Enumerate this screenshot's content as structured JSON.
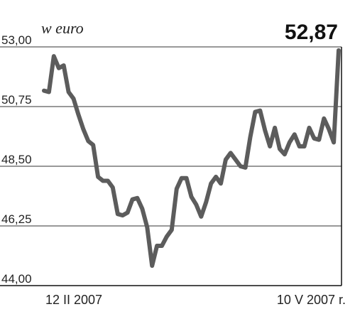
{
  "chart_data": {
    "type": "line",
    "title": "",
    "unit_label": "w euro",
    "last_value_label": "52,87",
    "xlabel": "",
    "ylabel": "",
    "ylim": [
      44.0,
      53.0
    ],
    "y_ticks": [
      {
        "value": 44.0,
        "label": "44,00"
      },
      {
        "value": 46.25,
        "label": "46,25"
      },
      {
        "value": 48.5,
        "label": "48,50"
      },
      {
        "value": 50.75,
        "label": "50,75"
      },
      {
        "value": 53.0,
        "label": "53,00"
      }
    ],
    "x_tick_labels": [
      {
        "text": "12 II 2007",
        "position": "start"
      },
      {
        "text": "10 V 2007 r.",
        "position": "end"
      }
    ],
    "grid": true,
    "line_color": "#5c5c5c",
    "series": [
      {
        "values": [
          51.35,
          51.3,
          52.65,
          52.2,
          52.3,
          51.3,
          51.05,
          50.45,
          49.9,
          49.45,
          49.3,
          48.1,
          47.95,
          47.95,
          47.7,
          46.7,
          46.65,
          46.75,
          47.25,
          47.3,
          46.9,
          46.2,
          44.75,
          45.5,
          45.5,
          45.85,
          46.1,
          47.65,
          48.05,
          48.05,
          47.35,
          47.05,
          46.6,
          47.15,
          47.85,
          48.1,
          47.85,
          48.75,
          49.0,
          48.75,
          48.5,
          48.45,
          49.6,
          50.55,
          50.6,
          49.85,
          49.25,
          49.95,
          49.15,
          48.95,
          49.4,
          49.7,
          49.25,
          49.25,
          49.95,
          49.55,
          49.5,
          50.3,
          49.9,
          49.4,
          52.87
        ]
      }
    ]
  }
}
